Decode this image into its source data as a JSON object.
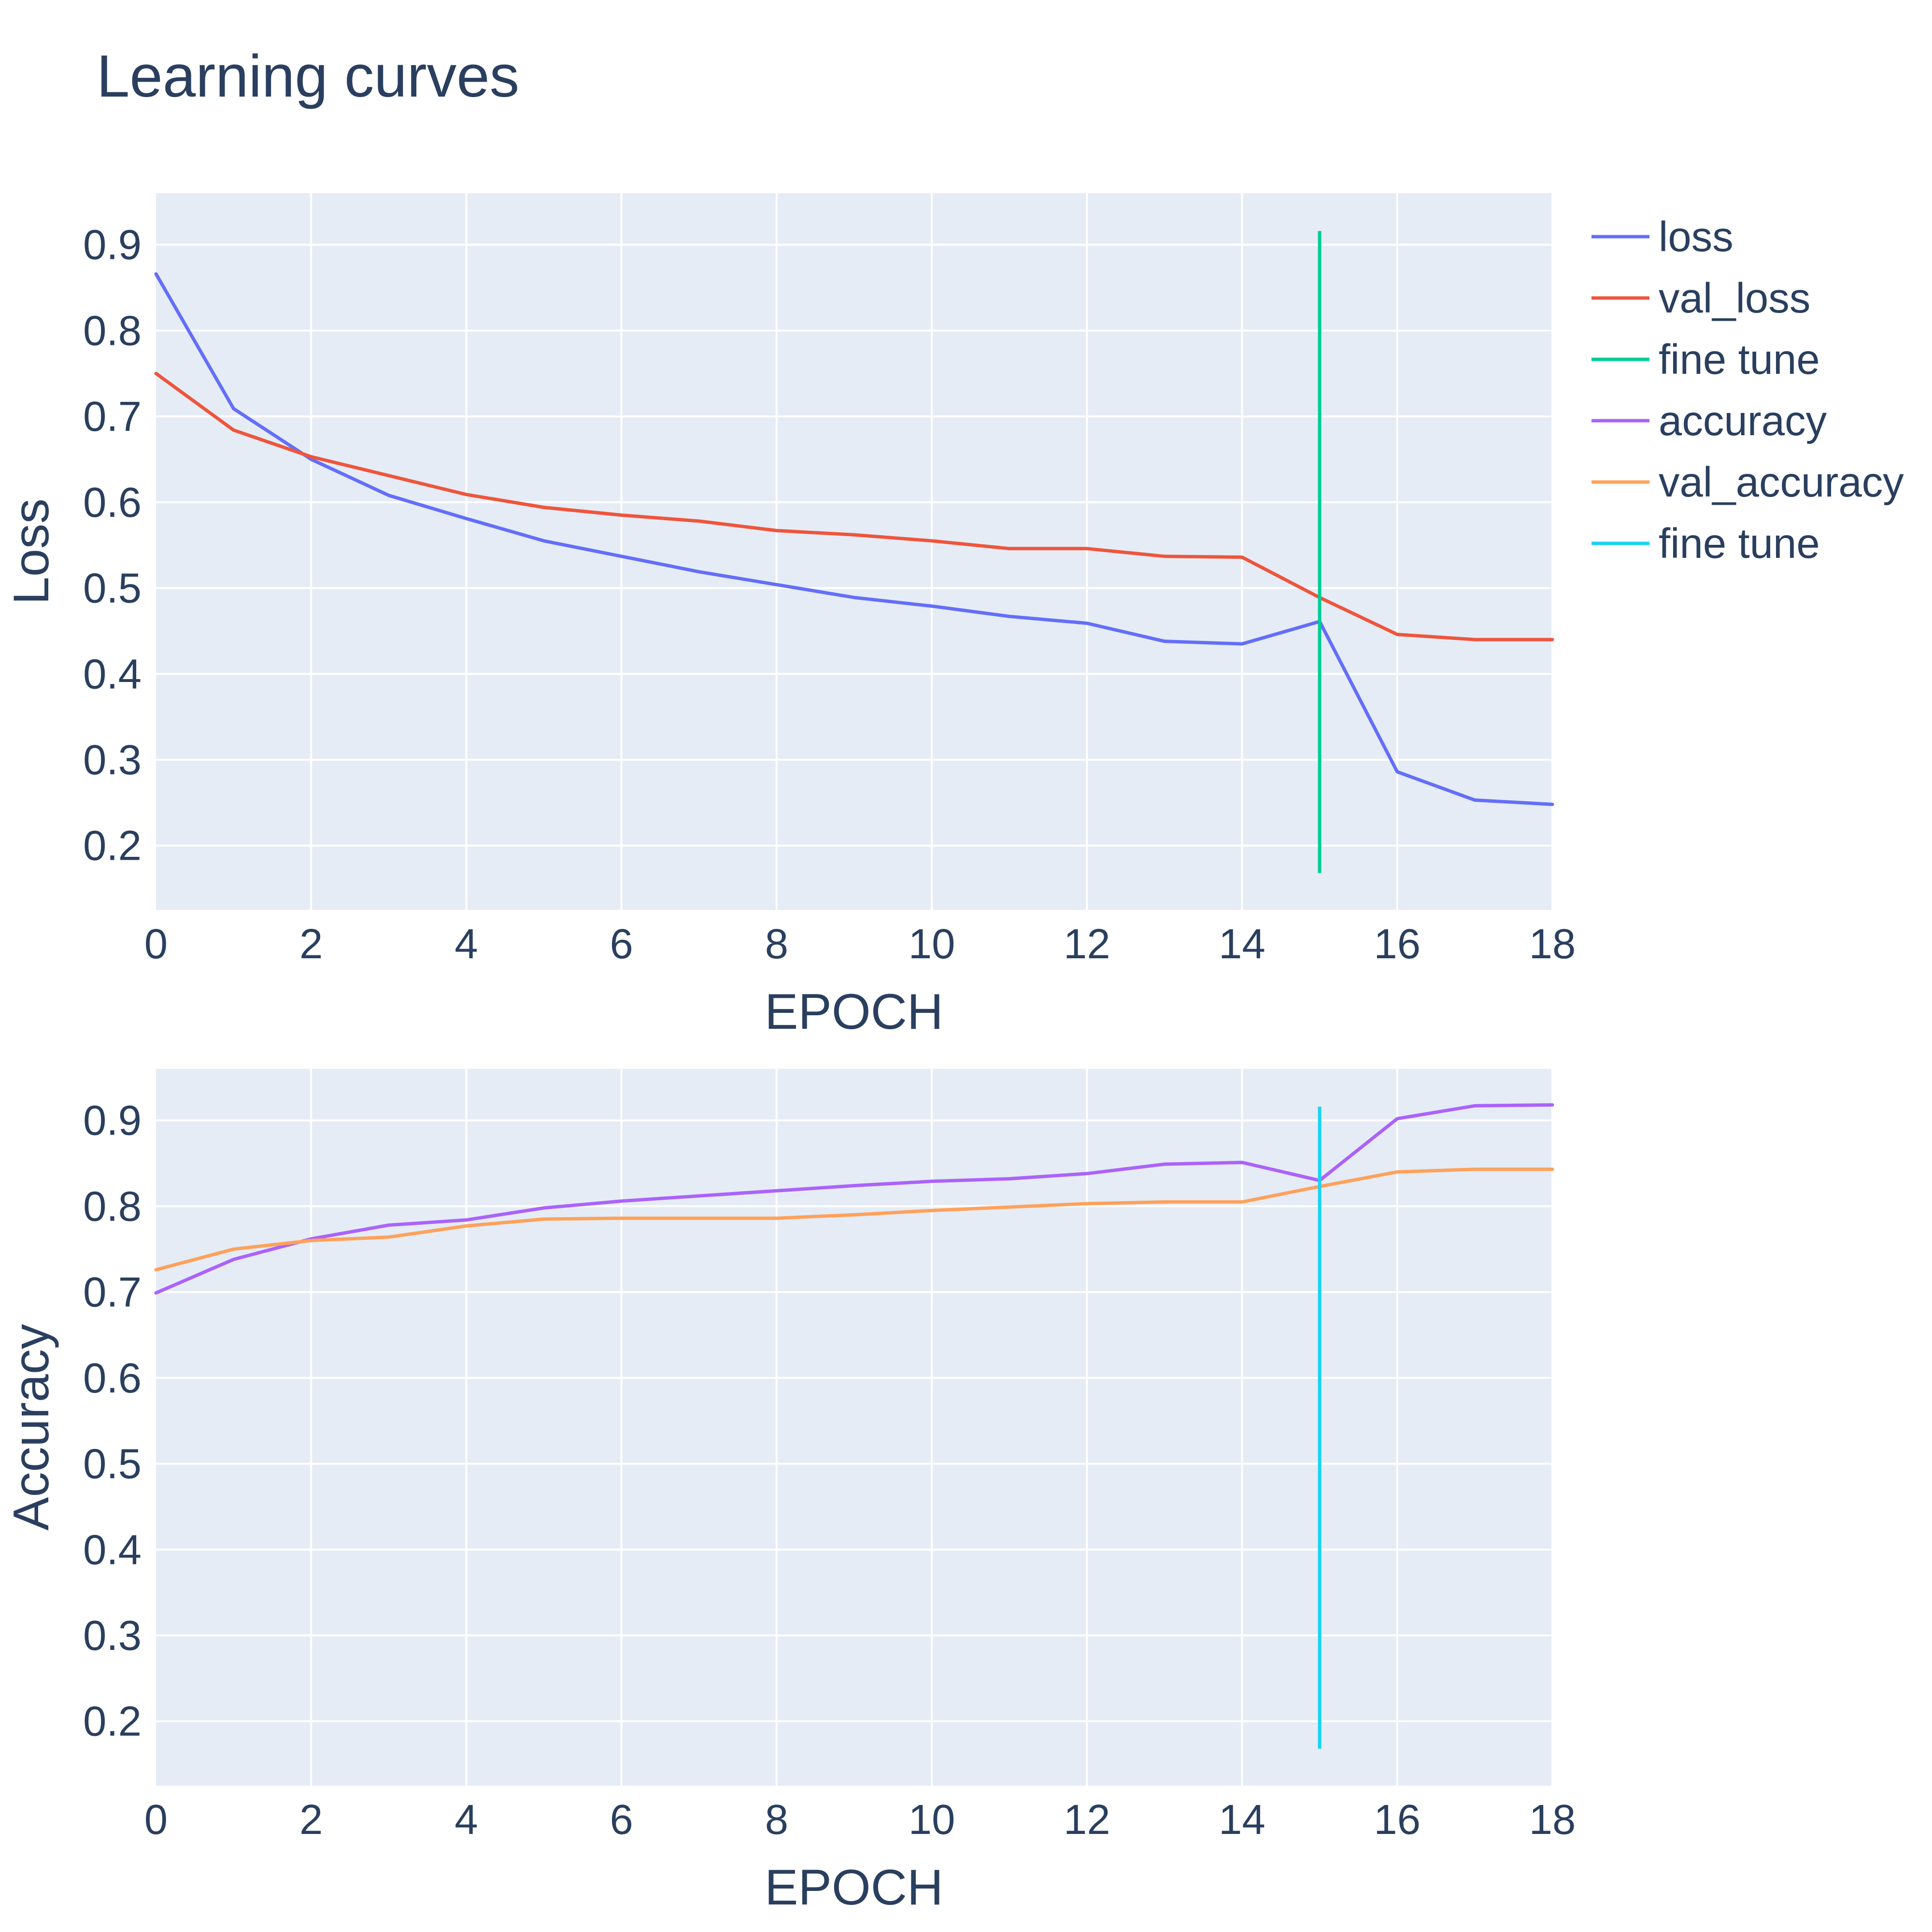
{
  "title": "Learning curves",
  "colors": {
    "loss": "#636efa",
    "val_loss": "#ef553b",
    "fine_tune_top": "#00cc96",
    "accuracy": "#ab63fa",
    "val_accuracy": "#ffa15a",
    "fine_tune_bottom": "#19d3f3",
    "plot_bg": "#e5ecf6",
    "grid": "#ffffff",
    "text": "#2a3f5f"
  },
  "legend": [
    {
      "label": "loss",
      "color": "#636efa"
    },
    {
      "label": "val_loss",
      "color": "#ef553b"
    },
    {
      "label": "fine tune",
      "color": "#00cc96"
    },
    {
      "label": "accuracy",
      "color": "#ab63fa"
    },
    {
      "label": "val_accuracy",
      "color": "#ffa15a"
    },
    {
      "label": "fine tune",
      "color": "#19d3f3"
    }
  ],
  "chart_data": [
    {
      "type": "line",
      "title": "Learning curves",
      "xlabel": "EPOCH",
      "ylabel": "Loss",
      "xlim": [
        0,
        18
      ],
      "ylim": [
        0.125,
        0.96
      ],
      "xticks": [
        0,
        2,
        4,
        6,
        8,
        10,
        12,
        14,
        16,
        18
      ],
      "yticks": [
        0.2,
        0.3,
        0.4,
        0.5,
        0.6,
        0.7,
        0.8,
        0.9
      ],
      "x": [
        0,
        1,
        2,
        3,
        4,
        5,
        6,
        7,
        8,
        9,
        10,
        11,
        12,
        13,
        14,
        15,
        16,
        17,
        18
      ],
      "series": [
        {
          "name": "loss",
          "color": "#636efa",
          "values": [
            0.866,
            0.709,
            0.65,
            0.608,
            0.581,
            0.555,
            0.537,
            0.519,
            0.504,
            0.489,
            0.479,
            0.467,
            0.459,
            0.438,
            0.435,
            0.461,
            0.286,
            0.253,
            0.248
          ]
        },
        {
          "name": "val_loss",
          "color": "#ef553b",
          "values": [
            0.75,
            0.684,
            0.653,
            0.631,
            0.609,
            0.594,
            0.585,
            0.578,
            0.567,
            0.562,
            0.555,
            0.546,
            0.546,
            0.537,
            0.536,
            0.489,
            0.446,
            0.44,
            0.44
          ]
        }
      ],
      "vline": {
        "name": "fine tune",
        "x": 15,
        "y": [
          0.168,
          0.916
        ],
        "color": "#00cc96"
      }
    },
    {
      "type": "line",
      "xlabel": "EPOCH",
      "ylabel": "Accuracy",
      "xlim": [
        0,
        18
      ],
      "ylim": [
        0.125,
        0.96
      ],
      "xticks": [
        0,
        2,
        4,
        6,
        8,
        10,
        12,
        14,
        16,
        18
      ],
      "yticks": [
        0.2,
        0.3,
        0.4,
        0.5,
        0.6,
        0.7,
        0.8,
        0.9
      ],
      "x": [
        0,
        1,
        2,
        3,
        4,
        5,
        6,
        7,
        8,
        9,
        10,
        11,
        12,
        13,
        14,
        15,
        16,
        17,
        18
      ],
      "series": [
        {
          "name": "accuracy",
          "color": "#ab63fa",
          "values": [
            0.699,
            0.738,
            0.762,
            0.778,
            0.784,
            0.798,
            0.806,
            0.812,
            0.818,
            0.824,
            0.829,
            0.832,
            0.838,
            0.849,
            0.851,
            0.83,
            0.902,
            0.917,
            0.918
          ]
        },
        {
          "name": "val_accuracy",
          "color": "#ffa15a",
          "values": [
            0.726,
            0.75,
            0.76,
            0.764,
            0.777,
            0.785,
            0.786,
            0.786,
            0.786,
            0.79,
            0.795,
            0.799,
            0.803,
            0.805,
            0.805,
            0.823,
            0.84,
            0.843,
            0.843
          ]
        }
      ],
      "vline": {
        "name": "fine tune",
        "x": 15,
        "y": [
          0.168,
          0.916
        ],
        "color": "#19d3f3"
      }
    }
  ]
}
